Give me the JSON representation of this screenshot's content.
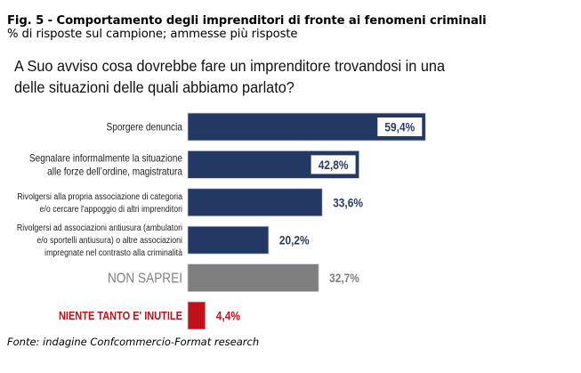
{
  "header": {
    "title": "Fig. 5 - Comportamento degli imprenditori di fronte ai fenomeni criminali",
    "subtitle": "% di risposte sul campione; ammesse più risposte"
  },
  "question": {
    "line1": "A Suo avviso cosa dovrebbe fare un imprenditore trovandosi in una",
    "line2": "delle situazioni delle quali abbiamo parlato?"
  },
  "footer": {
    "source": "Fonte: indagine Confcommercio-Format research"
  },
  "colors": {
    "navy": "#233862",
    "gray": "#7f7f7f",
    "red": "#c0101a",
    "navy_text": "#2a3b6a",
    "gray_text": "#808080",
    "red_text": "#c0101a"
  },
  "chart_data": {
    "type": "bar",
    "orientation": "horizontal",
    "title": "A Suo avviso cosa dovrebbe fare un imprenditore trovandosi in una delle situazioni delle quali abbiamo parlato?",
    "unit": "%",
    "xlim": [
      0,
      100
    ],
    "grid": false,
    "categories": [
      [
        "Sporgere  denuncia"
      ],
      [
        "Segnalare informalmente la situazione",
        "alle forze  dell’ordine, magistratura"
      ],
      [
        "Rivolgersi alla propria associazione di categoria",
        "e/o cercare l'appoggio di altri imprenditori"
      ],
      [
        "Rivolgersi ad associazioni antiusura (ambulatori",
        "e/o sportelli antiusura) o altre associazioni",
        "impregnate nel  contrasto alla criminalità"
      ],
      [
        "NON SAPREI"
      ],
      [
        "NIENTE  TANTO E' INUTILE"
      ]
    ],
    "values": [
      59.4,
      42.8,
      33.6,
      20.2,
      32.7,
      4.4
    ],
    "value_labels": [
      "59,4%",
      "42,8%",
      "33,6%",
      "20,2%",
      "32,7%",
      "4,4%"
    ],
    "bar_colors": [
      "navy",
      "navy",
      "navy",
      "navy",
      "gray",
      "red"
    ],
    "label_styles": [
      "normal",
      "normal",
      "small",
      "small",
      "big-gray",
      "bold-red"
    ],
    "value_label_inside": [
      true,
      true,
      false,
      false,
      false,
      false
    ]
  }
}
